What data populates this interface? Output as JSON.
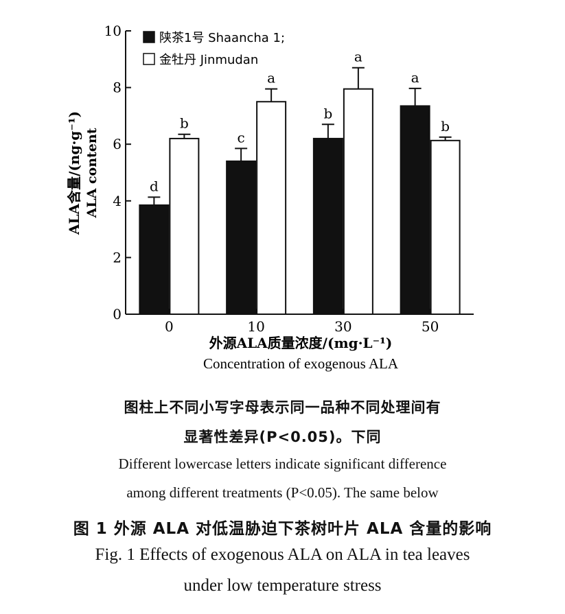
{
  "chart_data": {
    "type": "bar",
    "categories": [
      "0",
      "10",
      "30",
      "50"
    ],
    "series": [
      {
        "name": "陕茶1号 Shaancha 1;",
        "values": [
          3.85,
          5.4,
          6.2,
          7.35
        ],
        "errors": [
          0.28,
          0.45,
          0.5,
          0.62
        ],
        "letters": [
          "d",
          "c",
          "b",
          "a"
        ],
        "fill": "#111111"
      },
      {
        "name": "金牡丹 Jinmudan",
        "values": [
          6.2,
          7.5,
          7.95,
          6.13
        ],
        "errors": [
          0.15,
          0.45,
          0.75,
          0.12
        ],
        "letters": [
          "b",
          "a",
          "a",
          "b"
        ],
        "fill": "#ffffff"
      }
    ],
    "ylim": [
      0,
      10
    ],
    "yticks": [
      "0",
      "2",
      "4",
      "6",
      "8",
      "10"
    ],
    "ylabel_cn": "ALA含量/(ng·g⁻¹)",
    "ylabel_en": "ALA content",
    "xlabel_cn": "外源ALA质量浓度/(mg·L⁻¹)",
    "xlabel_en": "Concentration of exogenous ALA",
    "legend_position": "top-left",
    "grid": false
  },
  "captions": {
    "note_cn_1": "图柱上不同小写字母表示同一品种不同处理间有",
    "note_cn_2": "显著性差异(P<0.05)。下同",
    "note_en_1": "Different lowercase letters indicate significant difference",
    "note_en_2": "among different treatments (P<0.05). The same below",
    "fig_cn": "图 1   外源 ALA 对低温胁迫下茶树叶片 ALA 含量的影响",
    "fig_en_1": "Fig. 1    Effects of exogenous ALA on ALA in tea leaves",
    "fig_en_2": "under low temperature stress"
  }
}
